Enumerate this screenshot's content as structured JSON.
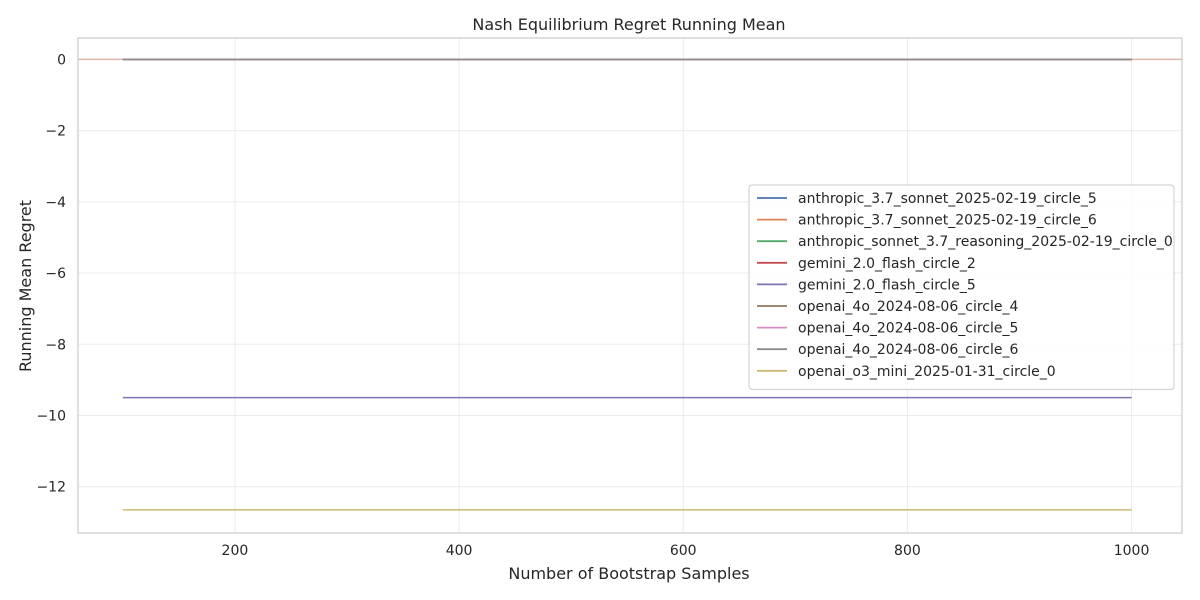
{
  "chart_data": {
    "type": "line",
    "title": "Nash Equilibrium Regret Running Mean",
    "xlabel": "Number of Bootstrap Samples",
    "ylabel": "Running Mean Regret",
    "xlim": [
      60,
      1045
    ],
    "ylim": [
      -13.3,
      0.6
    ],
    "xticks": [
      200,
      400,
      600,
      800,
      1000
    ],
    "yticks": [
      0,
      -2,
      -4,
      -6,
      -8,
      -10,
      -12
    ],
    "ytick_labels": [
      "0",
      "−2",
      "−4",
      "−6",
      "−8",
      "−10",
      "−12"
    ],
    "grid": true,
    "legend_position": "center-right",
    "reference_line": {
      "y": 0,
      "color": "#e0b4a8"
    },
    "series": [
      {
        "name": "anthropic_3.7_sonnet_2025-02-19_circle_5",
        "color": "#4c72b0",
        "x": [
          100,
          1000
        ],
        "y": [
          0,
          0
        ]
      },
      {
        "name": "anthropic_3.7_sonnet_2025-02-19_circle_6",
        "color": "#dd8452",
        "x": [
          100,
          1000
        ],
        "y": [
          0,
          0
        ]
      },
      {
        "name": "anthropic_sonnet_3.7_reasoning_2025-02-19_circle_0",
        "color": "#55a868",
        "x": [
          100,
          1000
        ],
        "y": [
          0,
          0
        ]
      },
      {
        "name": "gemini_2.0_flash_circle_2",
        "color": "#c44e52",
        "x": [
          100,
          1000
        ],
        "y": [
          0,
          0
        ]
      },
      {
        "name": "gemini_2.0_flash_circle_5",
        "color": "#8172b3",
        "x": [
          100,
          1000
        ],
        "y": [
          -9.5,
          -9.5
        ]
      },
      {
        "name": "openai_4o_2024-08-06_circle_4",
        "color": "#937860",
        "x": [
          100,
          1000
        ],
        "y": [
          0,
          0
        ]
      },
      {
        "name": "openai_4o_2024-08-06_circle_5",
        "color": "#da8bc3",
        "x": [
          100,
          1000
        ],
        "y": [
          0,
          0
        ]
      },
      {
        "name": "openai_4o_2024-08-06_circle_6",
        "color": "#8c8c8c",
        "x": [
          100,
          1000
        ],
        "y": [
          0,
          0
        ]
      },
      {
        "name": "openai_o3_mini_2025-01-31_circle_0",
        "color": "#ccb974",
        "x": [
          100,
          1000
        ],
        "y": [
          -12.65,
          -12.65
        ]
      }
    ]
  }
}
